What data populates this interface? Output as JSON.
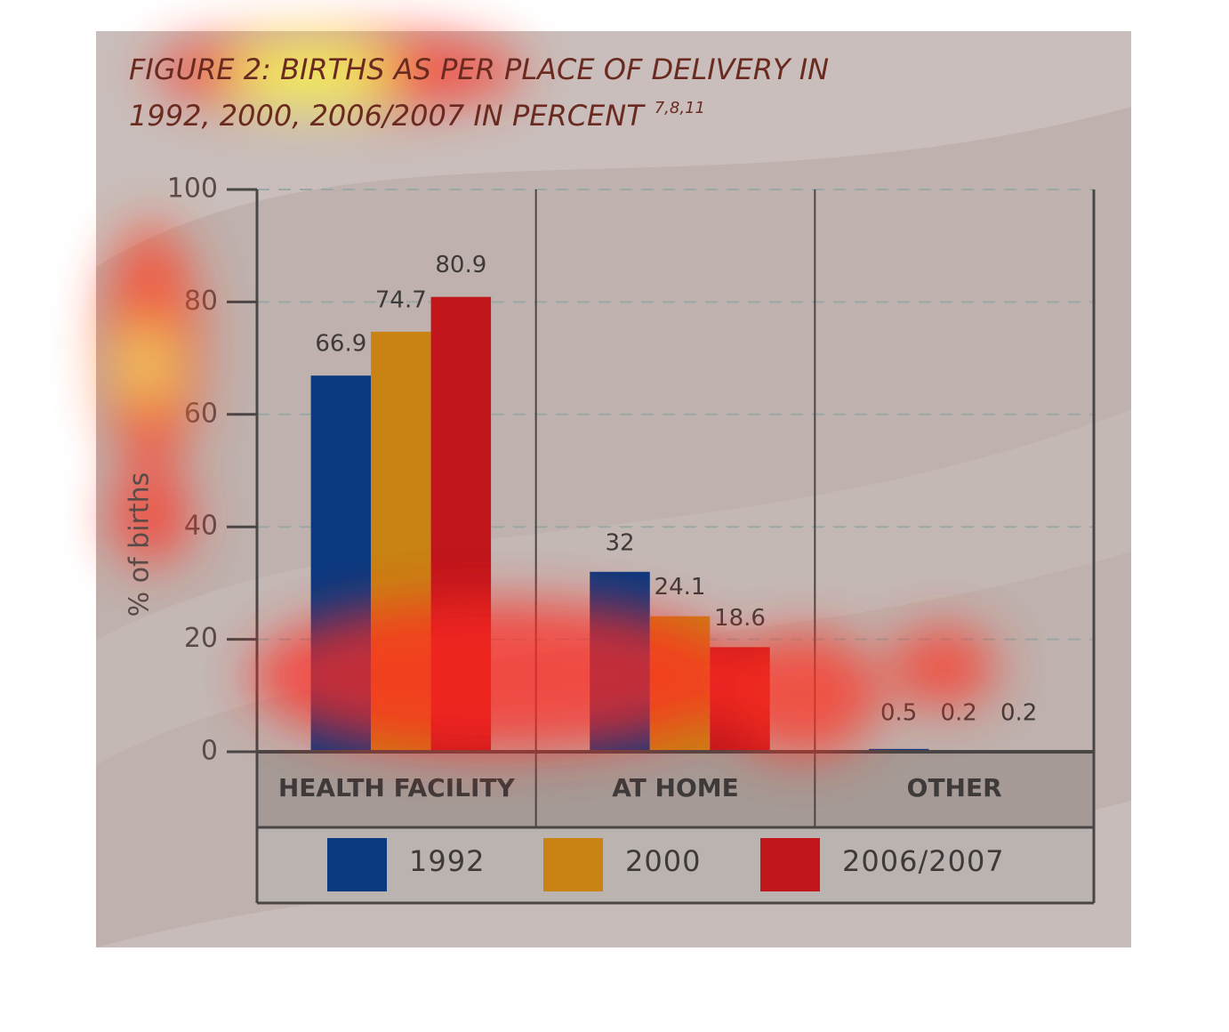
{
  "chart_data": {
    "type": "bar",
    "title": [
      "FIGURE 2: BIRTHS AS PER PLACE OF DELIVERY IN",
      "1992, 2000, 2006/2007 IN PERCENT"
    ],
    "title_superscript": "7,8,11",
    "y_label": "% of births",
    "categories": [
      "HEALTH FACILITY",
      "AT HOME",
      "OTHER"
    ],
    "series": [
      {
        "name": "1992",
        "color": "#0b3a80",
        "values": [
          66.9,
          32,
          0.5
        ]
      },
      {
        "name": "2000",
        "color": "#c98214",
        "values": [
          74.7,
          24.1,
          0.2
        ]
      },
      {
        "name": "2006/2007",
        "color": "#c0161c",
        "values": [
          80.9,
          18.6,
          0.2
        ]
      }
    ],
    "ylim": [
      0,
      100
    ],
    "yticks": [
      0,
      20,
      40,
      60,
      80,
      100
    ],
    "grid": true
  }
}
